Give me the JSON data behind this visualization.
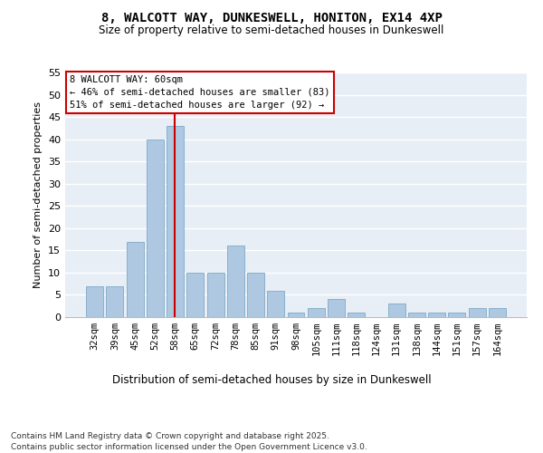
{
  "title1": "8, WALCOTT WAY, DUNKESWELL, HONITON, EX14 4XP",
  "title2": "Size of property relative to semi-detached houses in Dunkeswell",
  "xlabel": "Distribution of semi-detached houses by size in Dunkeswell",
  "ylabel": "Number of semi-detached properties",
  "categories": [
    "32sqm",
    "39sqm",
    "45sqm",
    "52sqm",
    "58sqm",
    "65sqm",
    "72sqm",
    "78sqm",
    "85sqm",
    "91sqm",
    "98sqm",
    "105sqm",
    "111sqm",
    "118sqm",
    "124sqm",
    "131sqm",
    "138sqm",
    "144sqm",
    "151sqm",
    "157sqm",
    "164sqm"
  ],
  "values": [
    7,
    7,
    17,
    40,
    43,
    10,
    10,
    16,
    10,
    6,
    1,
    2,
    4,
    1,
    0,
    3,
    1,
    1,
    1,
    2,
    2
  ],
  "bar_color": "#adc8e0",
  "bar_edge_color": "#8ab0cc",
  "background_color": "#e8eef6",
  "grid_color": "#ffffff",
  "vline_color": "#cc0000",
  "annotation_title": "8 WALCOTT WAY: 60sqm",
  "annotation_line1": "← 46% of semi-detached houses are smaller (83)",
  "annotation_line2": "51% of semi-detached houses are larger (92) →",
  "annotation_box_edge": "#cc0000",
  "footer1": "Contains HM Land Registry data © Crown copyright and database right 2025.",
  "footer2": "Contains public sector information licensed under the Open Government Licence v3.0.",
  "ylim": [
    0,
    55
  ],
  "yticks": [
    0,
    5,
    10,
    15,
    20,
    25,
    30,
    35,
    40,
    45,
    50,
    55
  ],
  "vline_index": 4
}
